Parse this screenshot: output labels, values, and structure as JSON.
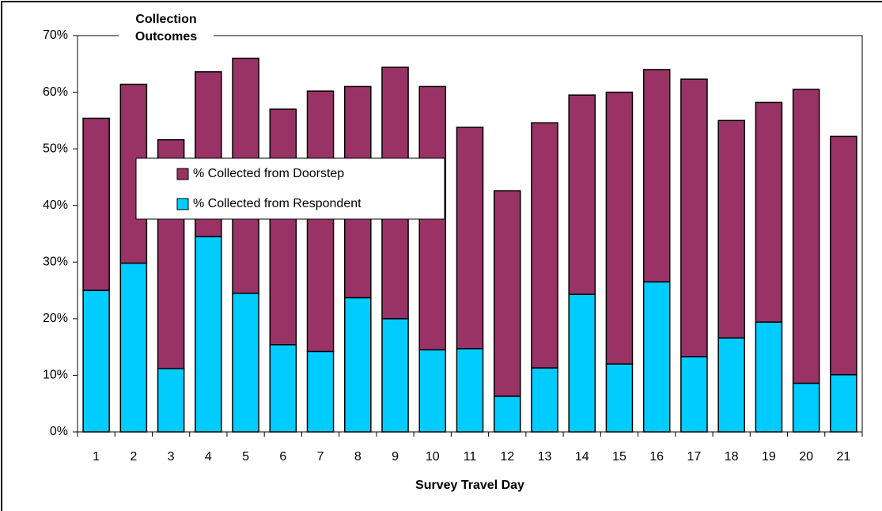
{
  "chart_data": {
    "type": "stacked_bar",
    "title": "Collection Outcomes",
    "x_label": "Survey Travel Day",
    "categories": [
      "1",
      "2",
      "3",
      "4",
      "5",
      "6",
      "7",
      "8",
      "9",
      "10",
      "11",
      "12",
      "13",
      "14",
      "15",
      "16",
      "17",
      "18",
      "19",
      "20",
      "21"
    ],
    "series": [
      {
        "name": "% Collected from Respondent",
        "color": "#00ccff",
        "values": [
          25,
          29.8,
          11.2,
          34.5,
          24.5,
          15.4,
          14.2,
          23.7,
          20,
          14.5,
          14.7,
          6.3,
          11.3,
          24.3,
          12,
          26.5,
          13.3,
          16.6,
          19.4,
          8.6,
          10.1
        ]
      },
      {
        "name": "% Collected from Doorstep",
        "color": "#993366",
        "values": [
          30.4,
          31.6,
          40.4,
          29.1,
          41.5,
          41.6,
          46,
          37.3,
          44.4,
          46.5,
          39.1,
          36.3,
          43.3,
          35.2,
          48,
          37.5,
          49,
          38.4,
          38.8,
          51.9,
          42.1
        ]
      }
    ],
    "ylim": [
      0,
      70
    ],
    "yticks": [
      {
        "value": 0,
        "label": "0%"
      },
      {
        "value": 10,
        "label": "10%"
      },
      {
        "value": 20,
        "label": "20%"
      },
      {
        "value": 30,
        "label": "30%"
      },
      {
        "value": 40,
        "label": "40%"
      },
      {
        "value": 50,
        "label": "50%"
      },
      {
        "value": 60,
        "label": "60%"
      },
      {
        "value": 70,
        "label": "70%"
      }
    ],
    "grid": false,
    "legend_position": "left"
  }
}
